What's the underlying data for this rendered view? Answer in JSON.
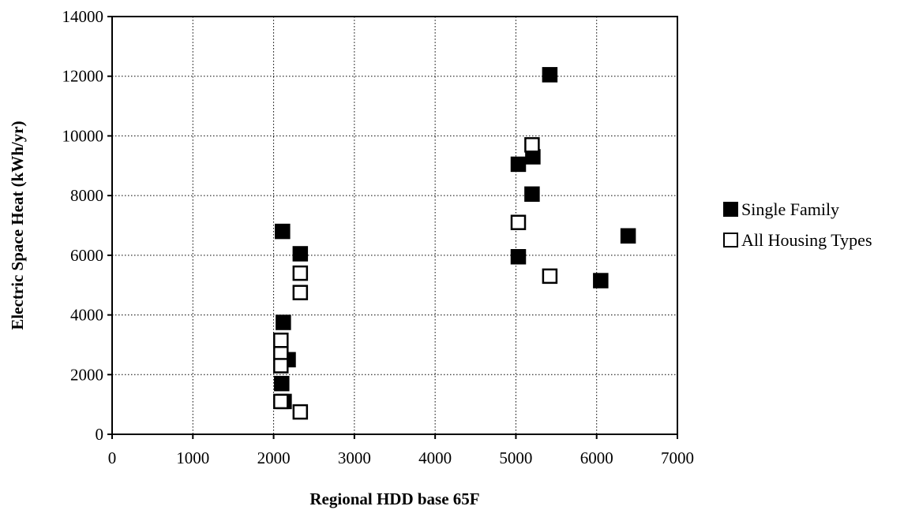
{
  "chart_data": {
    "type": "scatter",
    "title": "",
    "xlabel": "Regional HDD base 65F",
    "ylabel": "Electric Space Heat (kWh/yr)",
    "xlim": [
      0,
      7000
    ],
    "ylim": [
      0,
      14000
    ],
    "x_ticks": [
      "0",
      "1000",
      "2000",
      "3000",
      "4000",
      "5000",
      "6000",
      "7000"
    ],
    "y_ticks": [
      "0",
      "2000",
      "4000",
      "6000",
      "8000",
      "10000",
      "12000",
      "14000"
    ],
    "grid": "dotted",
    "legend_position": "right",
    "series": [
      {
        "name": "Single Family",
        "marker": "filled-square",
        "color": "#000000",
        "points": [
          {
            "x": 2110,
            "y": 6800
          },
          {
            "x": 2330,
            "y": 6050
          },
          {
            "x": 2120,
            "y": 3750
          },
          {
            "x": 2180,
            "y": 2500
          },
          {
            "x": 2100,
            "y": 1700
          },
          {
            "x": 2130,
            "y": 1100
          },
          {
            "x": 5420,
            "y": 12050
          },
          {
            "x": 5030,
            "y": 9050
          },
          {
            "x": 5210,
            "y": 9300
          },
          {
            "x": 5200,
            "y": 8050
          },
          {
            "x": 5030,
            "y": 5950
          },
          {
            "x": 6050,
            "y": 5150
          },
          {
            "x": 6390,
            "y": 6650
          }
        ]
      },
      {
        "name": "All Housing Types",
        "marker": "open-square",
        "color": "#000000",
        "points": [
          {
            "x": 2330,
            "y": 5400
          },
          {
            "x": 2330,
            "y": 4750
          },
          {
            "x": 2090,
            "y": 3150
          },
          {
            "x": 2090,
            "y": 2700
          },
          {
            "x": 2090,
            "y": 2300
          },
          {
            "x": 2090,
            "y": 1100
          },
          {
            "x": 2330,
            "y": 750
          },
          {
            "x": 5200,
            "y": 9700
          },
          {
            "x": 5030,
            "y": 7100
          },
          {
            "x": 5420,
            "y": 5300
          }
        ]
      }
    ]
  }
}
